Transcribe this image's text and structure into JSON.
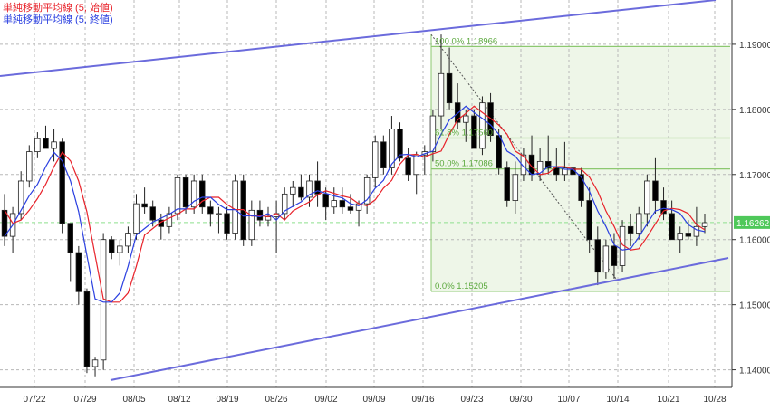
{
  "legend": {
    "open_ma": "単純移動平均線 (5, 始値)",
    "close_ma": "単純移動平均線 (5, 終値)",
    "open_ma_color": "#e8222a",
    "close_ma_color": "#2a3fe0"
  },
  "current_price_label": "1.16262",
  "fibonacci": {
    "level_100": "100.0% 1.18966",
    "level_618": "61.8% 1.17560",
    "level_50": "50.0% 1.17086",
    "level_0": "0.0% 1.15205"
  },
  "colors": {
    "grid": "#b8b8b8",
    "channel": "#6b6bdc",
    "fib": "#8cc870",
    "fib_text": "#5aa83c",
    "fib_fill": "#eef6e8",
    "bull": "#ffffff",
    "bear": "#000000",
    "current": "#8ee08e"
  },
  "chart_data": {
    "type": "candlestick",
    "title": "",
    "y_ticks": [
      "1.14000",
      "1.15000",
      "1.16000",
      "1.17000",
      "1.18000",
      "1.19000"
    ],
    "ylim": [
      1.1373,
      1.1968
    ],
    "x_tick_labels": [
      "07/22",
      "07/29",
      "08/05",
      "08/12",
      "08/19",
      "08/26",
      "09/02",
      "09/09",
      "09/16",
      "09/23",
      "09/30",
      "10/07",
      "10/14",
      "10/21",
      "10/28"
    ],
    "grid": true,
    "fib_levels": [
      {
        "pct": "100.0%",
        "value": 1.18966
      },
      {
        "pct": "61.8%",
        "value": 1.1756
      },
      {
        "pct": "50.0%",
        "value": 1.17086
      },
      {
        "pct": "0.0%",
        "value": 1.15205
      }
    ],
    "current_price": 1.16262,
    "candles": [
      [
        1.1645,
        1.167,
        1.159,
        1.1605
      ],
      [
        1.1605,
        1.165,
        1.158,
        1.164
      ],
      [
        1.164,
        1.1705,
        1.163,
        1.169
      ],
      [
        1.169,
        1.1745,
        1.168,
        1.1735
      ],
      [
        1.1735,
        1.1765,
        1.1725,
        1.1755
      ],
      [
        1.1755,
        1.1775,
        1.174,
        1.174
      ],
      [
        1.174,
        1.177,
        1.172,
        1.175
      ],
      [
        1.175,
        1.1755,
        1.161,
        1.1625
      ],
      [
        1.1625,
        1.1625,
        1.1535,
        1.158
      ],
      [
        1.158,
        1.159,
        1.15,
        1.152
      ],
      [
        1.152,
        1.1525,
        1.1395,
        1.1405
      ],
      [
        1.1405,
        1.142,
        1.139,
        1.1415
      ],
      [
        1.1415,
        1.161,
        1.14,
        1.16
      ],
      [
        1.16,
        1.1605,
        1.157,
        1.158
      ],
      [
        1.158,
        1.16,
        1.156,
        1.159
      ],
      [
        1.159,
        1.162,
        1.158,
        1.161
      ],
      [
        1.161,
        1.167,
        1.16,
        1.1655
      ],
      [
        1.1655,
        1.168,
        1.164,
        1.165
      ],
      [
        1.165,
        1.166,
        1.162,
        1.163
      ],
      [
        1.163,
        1.164,
        1.16,
        1.162
      ],
      [
        1.162,
        1.165,
        1.161,
        1.164
      ],
      [
        1.164,
        1.17,
        1.163,
        1.1695
      ],
      [
        1.1695,
        1.17,
        1.164,
        1.165
      ],
      [
        1.165,
        1.17,
        1.164,
        1.169
      ],
      [
        1.169,
        1.17,
        1.164,
        1.165
      ],
      [
        1.165,
        1.166,
        1.162,
        1.164
      ],
      [
        1.164,
        1.165,
        1.161,
        1.164
      ],
      [
        1.164,
        1.165,
        1.16,
        1.161
      ],
      [
        1.161,
        1.17,
        1.16,
        1.169
      ],
      [
        1.169,
        1.17,
        1.159,
        1.16
      ],
      [
        1.16,
        1.166,
        1.159,
        1.1645
      ],
      [
        1.1645,
        1.166,
        1.162,
        1.163
      ],
      [
        1.163,
        1.165,
        1.162,
        1.1635
      ],
      [
        1.1635,
        1.166,
        1.158,
        1.164
      ],
      [
        1.164,
        1.168,
        1.163,
        1.167
      ],
      [
        1.167,
        1.169,
        1.165,
        1.168
      ],
      [
        1.168,
        1.17,
        1.166,
        1.1665
      ],
      [
        1.1665,
        1.17,
        1.165,
        1.169
      ],
      [
        1.169,
        1.172,
        1.165,
        1.167
      ],
      [
        1.167,
        1.168,
        1.163,
        1.165
      ],
      [
        1.165,
        1.168,
        1.164,
        1.166
      ],
      [
        1.166,
        1.168,
        1.164,
        1.165
      ],
      [
        1.165,
        1.167,
        1.164,
        1.1645
      ],
      [
        1.1645,
        1.166,
        1.162,
        1.1655
      ],
      [
        1.1655,
        1.17,
        1.164,
        1.1695
      ],
      [
        1.1695,
        1.176,
        1.168,
        1.175
      ],
      [
        1.175,
        1.176,
        1.17,
        1.171
      ],
      [
        1.171,
        1.179,
        1.17,
        1.177
      ],
      [
        1.177,
        1.178,
        1.172,
        1.1725
      ],
      [
        1.1725,
        1.174,
        1.169,
        1.17
      ],
      [
        1.17,
        1.1735,
        1.167,
        1.173
      ],
      [
        1.173,
        1.1745,
        1.17,
        1.1735
      ],
      [
        1.1735,
        1.18,
        1.172,
        1.179
      ],
      [
        1.179,
        1.1915,
        1.177,
        1.1855
      ],
      [
        1.1855,
        1.1895,
        1.18,
        1.181
      ],
      [
        1.181,
        1.184,
        1.177,
        1.178
      ],
      [
        1.178,
        1.18,
        1.175,
        1.179
      ],
      [
        1.179,
        1.18,
        1.174,
        1.174
      ],
      [
        1.174,
        1.182,
        1.173,
        1.181
      ],
      [
        1.181,
        1.1825,
        1.175,
        1.176
      ],
      [
        1.176,
        1.177,
        1.17,
        1.171
      ],
      [
        1.171,
        1.172,
        1.165,
        1.166
      ],
      [
        1.166,
        1.172,
        1.164,
        1.17
      ],
      [
        1.17,
        1.174,
        1.169,
        1.173
      ],
      [
        1.173,
        1.176,
        1.169,
        1.17
      ],
      [
        1.17,
        1.174,
        1.169,
        1.172
      ],
      [
        1.172,
        1.176,
        1.17,
        1.171
      ],
      [
        1.171,
        1.174,
        1.169,
        1.17
      ],
      [
        1.17,
        1.175,
        1.169,
        1.171
      ],
      [
        1.171,
        1.172,
        1.169,
        1.17
      ],
      [
        1.17,
        1.171,
        1.165,
        1.166
      ],
      [
        1.166,
        1.168,
        1.158,
        1.16
      ],
      [
        1.16,
        1.162,
        1.153,
        1.155
      ],
      [
        1.155,
        1.16,
        1.154,
        1.159
      ],
      [
        1.159,
        1.161,
        1.154,
        1.156
      ],
      [
        1.156,
        1.163,
        1.155,
        1.162
      ],
      [
        1.162,
        1.164,
        1.159,
        1.161
      ],
      [
        1.161,
        1.165,
        1.16,
        1.164
      ],
      [
        1.164,
        1.17,
        1.162,
        1.169
      ],
      [
        1.169,
        1.1725,
        1.164,
        1.166
      ],
      [
        1.166,
        1.168,
        1.163,
        1.164
      ],
      [
        1.164,
        1.166,
        1.16,
        1.16
      ],
      [
        1.16,
        1.162,
        1.158,
        1.161
      ],
      [
        1.161,
        1.163,
        1.16,
        1.1605
      ],
      [
        1.1605,
        1.165,
        1.159,
        1.162
      ],
      [
        1.162,
        1.164,
        1.161,
        1.1626
      ]
    ]
  }
}
